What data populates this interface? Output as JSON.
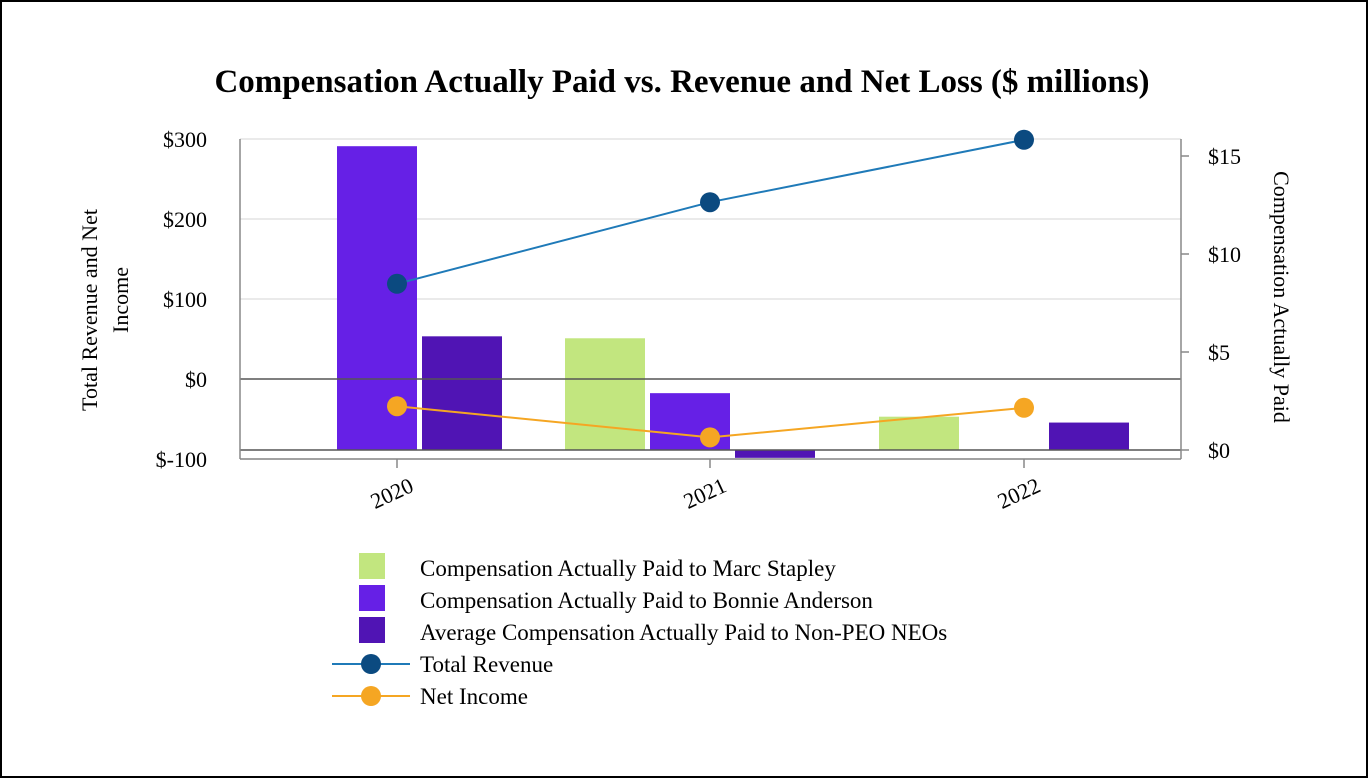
{
  "chart_data": {
    "type": "bar",
    "title": "Compensation Actually Paid vs. Revenue and Net Loss ($ millions)",
    "categories": [
      "2020",
      "2021",
      "2022"
    ],
    "left_axis": {
      "label": "Total Revenue and Net Income",
      "label_lines": [
        "Total Revenue and Net",
        "Income"
      ],
      "range": [
        -100,
        300
      ],
      "ticks": [
        300,
        200,
        100,
        0,
        -100
      ],
      "tick_labels": [
        "$300",
        "$200",
        "$100",
        "$0",
        "$-100"
      ]
    },
    "right_axis": {
      "label": "Compensation Actually Paid",
      "range": [
        0,
        16.4
      ],
      "ticks": [
        15,
        10,
        5,
        0
      ],
      "tick_labels": [
        "$15",
        "$10",
        "$5",
        "$0"
      ]
    },
    "bar_series": [
      {
        "name": "Compensation Actually Paid to Marc Stapley",
        "color": "#c2e67f",
        "values": [
          null,
          5.7,
          1.7
        ]
      },
      {
        "name": "Compensation Actually Paid to Bonnie Anderson",
        "color": "#6620e6",
        "values": [
          15.5,
          2.9,
          null
        ]
      },
      {
        "name": "Average Compensation Actually Paid to Non-PEO NEOs",
        "color": "#5014b4",
        "values": [
          5.8,
          -0.4,
          1.4
        ]
      }
    ],
    "line_series": [
      {
        "name": "Total Revenue",
        "color": "#1f7ab8",
        "marker_color": "#0b4a80",
        "axis": "left",
        "values": [
          119,
          221,
          299
        ]
      },
      {
        "name": "Net Income",
        "color": "#f5a623",
        "marker_color": "#f5a623",
        "axis": "left",
        "values": [
          -34,
          -73,
          -36
        ]
      }
    ],
    "legend_position": "bottom-center",
    "grid": true
  }
}
